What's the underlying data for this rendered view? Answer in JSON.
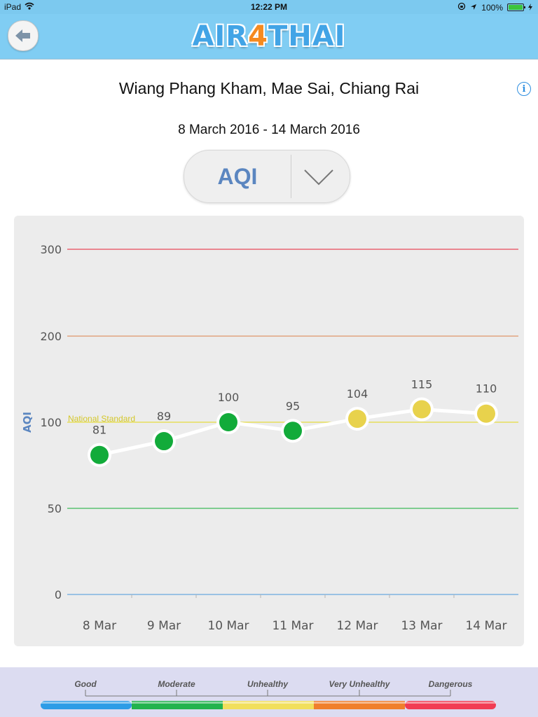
{
  "status_bar": {
    "device": "iPad",
    "time": "12:22 PM",
    "battery": "100%"
  },
  "header": {
    "back_icon": "back-arrow-icon",
    "logo_parts": [
      "AIR",
      "4",
      "THAI"
    ]
  },
  "location": {
    "title": "Wiang Phang Kham, Mae Sai, Chiang Rai",
    "date_range": "8 March 2016 - 14 March 2016"
  },
  "selector": {
    "value": "AQI"
  },
  "chart_data": {
    "type": "line",
    "ylabel": "AQI",
    "y_ticks": [
      0,
      50,
      100,
      200,
      300
    ],
    "categories": [
      "8 Mar",
      "9 Mar",
      "10 Mar",
      "11 Mar",
      "12 Mar",
      "13 Mar",
      "14 Mar"
    ],
    "values": [
      81,
      89,
      100,
      95,
      104,
      115,
      110
    ],
    "point_colors": [
      "#12ab3a",
      "#12ab3a",
      "#12ab3a",
      "#12ab3a",
      "#e8d24c",
      "#e8d24c",
      "#e8d24c"
    ],
    "reference_lines": [
      {
        "value": 300,
        "color": "#e8495a",
        "label": ""
      },
      {
        "value": 200,
        "color": "#e0966a",
        "label": ""
      },
      {
        "value": 100,
        "color": "#e6dc3e",
        "label": "National Standard"
      },
      {
        "value": 50,
        "color": "#3cb95a",
        "label": ""
      },
      {
        "value": 0,
        "color": "#6aa8e0",
        "label": ""
      }
    ],
    "grid": false
  },
  "legend": {
    "levels": [
      "Good",
      "Moderate",
      "Unhealthy",
      "Very  Unhealthy",
      "Dangerous"
    ],
    "colors": [
      "#2d9ce6",
      "#22b34d",
      "#f1df5c",
      "#f07f2c",
      "#f13c53"
    ]
  }
}
